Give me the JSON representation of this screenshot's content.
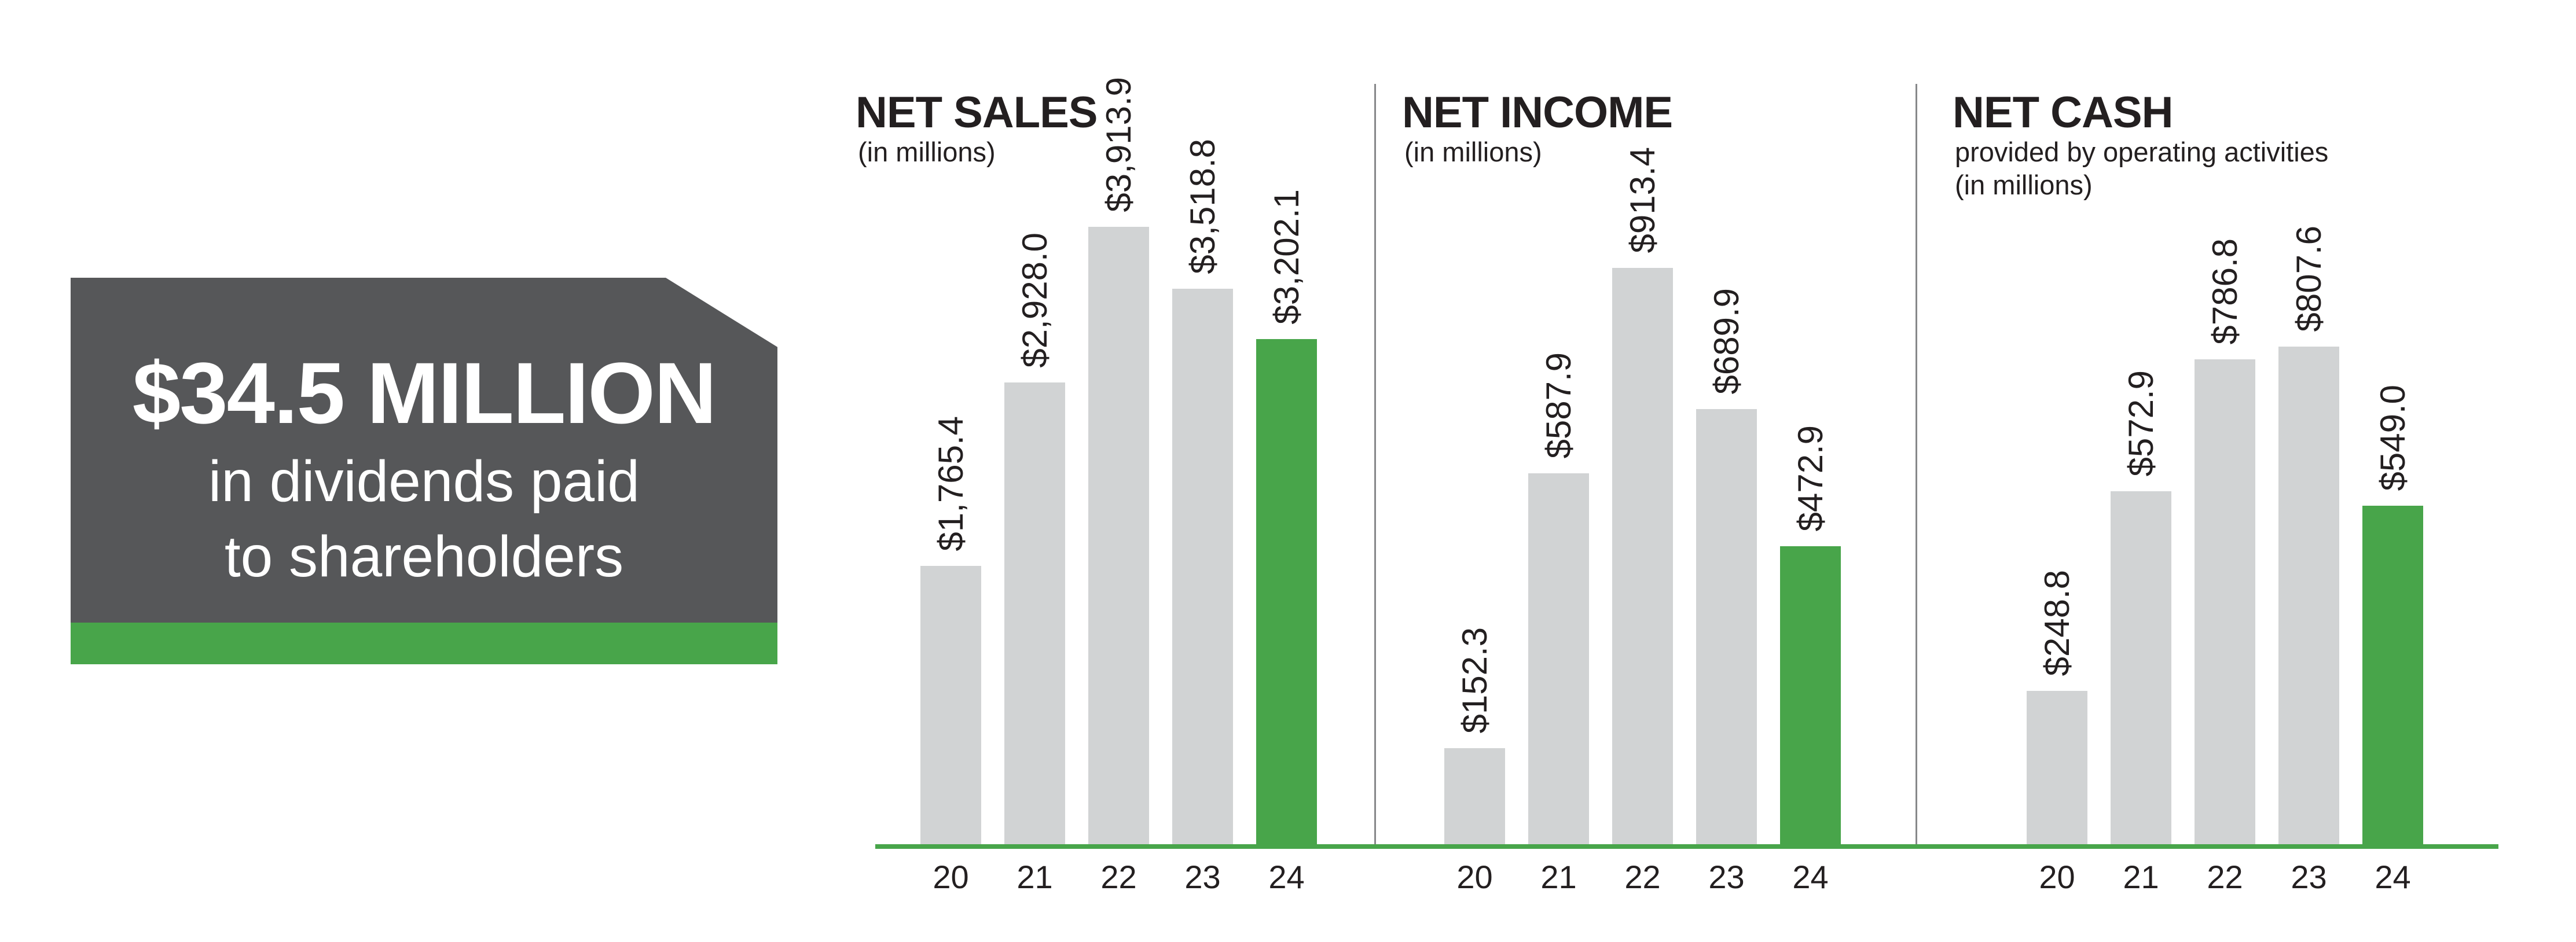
{
  "colors": {
    "green": "#48a54a",
    "box_gray": "#565759",
    "bar_gray": "#d1d3d4",
    "ink": "#231f20"
  },
  "callout": {
    "headline": "$34.5 MILLION",
    "line2": "in dividends paid",
    "line3": "to shareholders"
  },
  "chart_data": [
    {
      "type": "bar",
      "title": "NET SALES",
      "subtitle_lines": [
        "(in millions)"
      ],
      "categories": [
        "20",
        "21",
        "22",
        "23",
        "24"
      ],
      "values": [
        1765.4,
        2928.0,
        3913.9,
        3518.8,
        3202.1
      ],
      "value_labels": [
        "$1,765.4",
        "$2,928.0",
        "$3,913.9",
        "$3,518.8",
        "$3,202.1"
      ],
      "highlight_index": 4,
      "ylim": [
        0,
        3913.9
      ],
      "grid": false,
      "legend": "none"
    },
    {
      "type": "bar",
      "title": "NET INCOME",
      "subtitle_lines": [
        "(in millions)"
      ],
      "categories": [
        "20",
        "21",
        "22",
        "23",
        "24"
      ],
      "values": [
        152.3,
        587.9,
        913.4,
        689.9,
        472.9
      ],
      "value_labels": [
        "$152.3",
        "$587.9",
        "$913.4",
        "$689.9",
        "$472.9"
      ],
      "highlight_index": 4,
      "ylim": [
        0,
        913.4
      ],
      "grid": false,
      "legend": "none"
    },
    {
      "type": "bar",
      "title": "NET CASH",
      "subtitle_lines": [
        "provided by operating activities",
        "(in millions)"
      ],
      "categories": [
        "20",
        "21",
        "22",
        "23",
        "24"
      ],
      "values": [
        248.8,
        572.9,
        786.8,
        807.6,
        549.0
      ],
      "value_labels": [
        "$248.8",
        "$572.9",
        "$786.8",
        "$807.6",
        "$549.0"
      ],
      "highlight_index": 4,
      "ylim": [
        0,
        807.6
      ],
      "grid": false,
      "legend": "none"
    }
  ]
}
